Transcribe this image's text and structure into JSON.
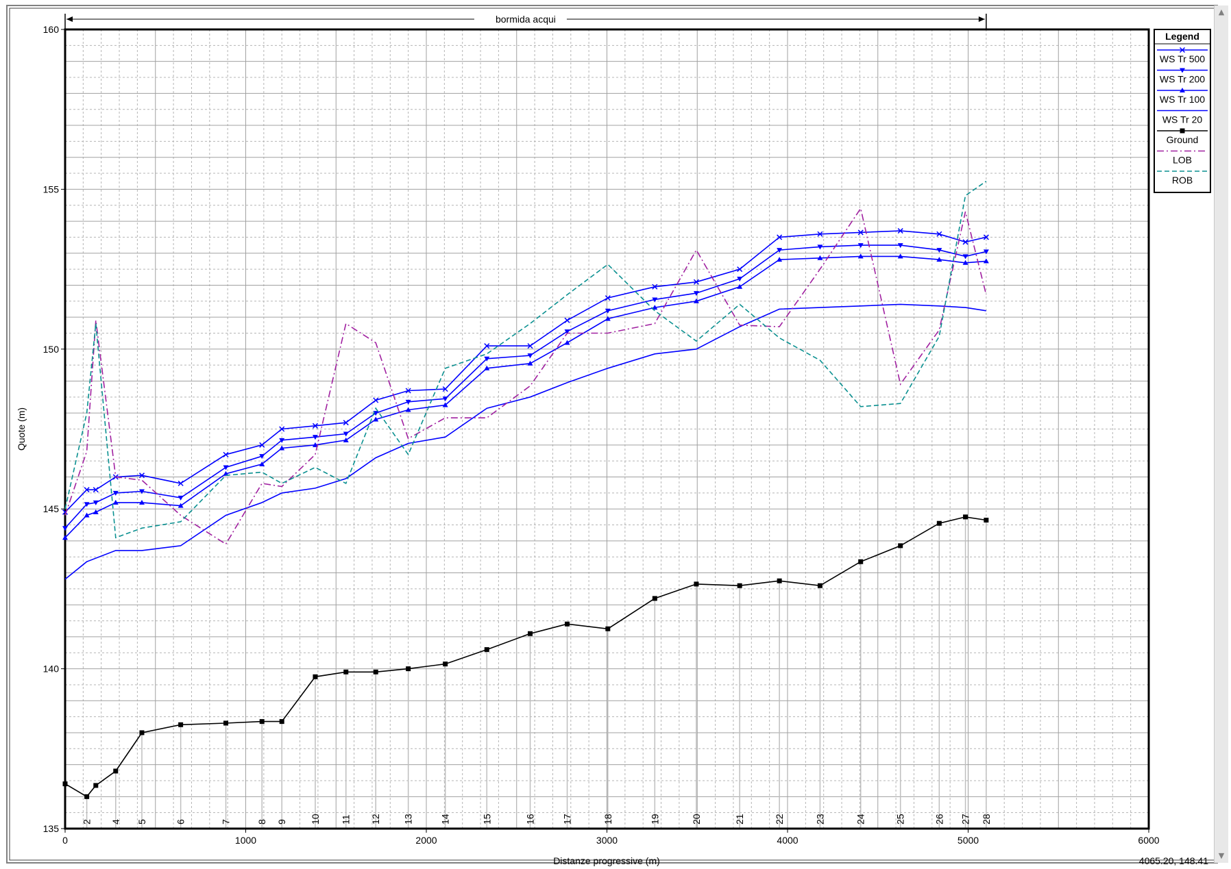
{
  "window": {
    "coordinate_readout": "4065.20, 148.41"
  },
  "colors": {
    "ws": "#0000ff",
    "ground": "#000000",
    "lob": "#a020a0",
    "rob": "#0a9090",
    "grid": "#b4b4b4",
    "station_line": "#bebebe"
  },
  "chart_data": {
    "type": "line",
    "title": "",
    "reach_label": "bormida acqui",
    "xlabel": "Distanze progressive (m)",
    "ylabel": "Quote (m)",
    "xlim": [
      0,
      6000
    ],
    "ylim": [
      135,
      160
    ],
    "x_ticks": [
      0,
      1000,
      2000,
      3000,
      4000,
      5000,
      6000
    ],
    "y_ticks": [
      135,
      140,
      145,
      150,
      155,
      160
    ],
    "grid": true,
    "legend_title": "Legend",
    "legend_position": "right",
    "stations": [
      {
        "label": "2",
        "x": 120
      },
      {
        "label": "4",
        "x": 280
      },
      {
        "label": "5",
        "x": 425
      },
      {
        "label": "6",
        "x": 640
      },
      {
        "label": "7",
        "x": 890
      },
      {
        "label": "8",
        "x": 1090
      },
      {
        "label": "9",
        "x": 1200
      },
      {
        "label": "10",
        "x": 1385
      },
      {
        "label": "11",
        "x": 1555
      },
      {
        "label": "12",
        "x": 1720
      },
      {
        "label": "13",
        "x": 1900
      },
      {
        "label": "14",
        "x": 2105
      },
      {
        "label": "15",
        "x": 2335
      },
      {
        "label": "16",
        "x": 2575
      },
      {
        "label": "17",
        "x": 2780
      },
      {
        "label": "18",
        "x": 3005
      },
      {
        "label": "19",
        "x": 3265
      },
      {
        "label": "20",
        "x": 3495
      },
      {
        "label": "21",
        "x": 3735
      },
      {
        "label": "22",
        "x": 3955
      },
      {
        "label": "23",
        "x": 4180
      },
      {
        "label": "24",
        "x": 4405
      },
      {
        "label": "25",
        "x": 4625
      },
      {
        "label": "26",
        "x": 4840
      },
      {
        "label": "27",
        "x": 4985
      },
      {
        "label": "28",
        "x": 5100
      }
    ],
    "series": [
      {
        "name": "WS  Tr 500",
        "style": "solid",
        "marker": "x",
        "points": [
          [
            0,
            144.9
          ],
          [
            120,
            145.6
          ],
          [
            170,
            145.6
          ],
          [
            280,
            146.0
          ],
          [
            425,
            146.05
          ],
          [
            640,
            145.8
          ],
          [
            890,
            146.7
          ],
          [
            1090,
            147.0
          ],
          [
            1200,
            147.5
          ],
          [
            1385,
            147.6
          ],
          [
            1555,
            147.7
          ],
          [
            1720,
            148.4
          ],
          [
            1900,
            148.7
          ],
          [
            2105,
            148.75
          ],
          [
            2335,
            150.1
          ],
          [
            2575,
            150.1
          ],
          [
            2780,
            150.9
          ],
          [
            3005,
            151.6
          ],
          [
            3265,
            151.95
          ],
          [
            3495,
            152.1
          ],
          [
            3735,
            152.5
          ],
          [
            3955,
            153.5
          ],
          [
            4180,
            153.6
          ],
          [
            4405,
            153.65
          ],
          [
            4625,
            153.7
          ],
          [
            4840,
            153.6
          ],
          [
            4985,
            153.35
          ],
          [
            5100,
            153.5
          ]
        ]
      },
      {
        "name": "WS  Tr 200",
        "style": "solid",
        "marker": "tri-down",
        "points": [
          [
            0,
            144.4
          ],
          [
            120,
            145.15
          ],
          [
            170,
            145.2
          ],
          [
            280,
            145.5
          ],
          [
            425,
            145.55
          ],
          [
            640,
            145.35
          ],
          [
            890,
            146.3
          ],
          [
            1090,
            146.65
          ],
          [
            1200,
            147.15
          ],
          [
            1385,
            147.25
          ],
          [
            1555,
            147.35
          ],
          [
            1720,
            148.0
          ],
          [
            1900,
            148.35
          ],
          [
            2105,
            148.45
          ],
          [
            2335,
            149.7
          ],
          [
            2575,
            149.8
          ],
          [
            2780,
            150.55
          ],
          [
            3005,
            151.2
          ],
          [
            3265,
            151.55
          ],
          [
            3495,
            151.75
          ],
          [
            3735,
            152.2
          ],
          [
            3955,
            153.1
          ],
          [
            4180,
            153.2
          ],
          [
            4405,
            153.25
          ],
          [
            4625,
            153.25
          ],
          [
            4840,
            153.1
          ],
          [
            4985,
            152.9
          ],
          [
            5100,
            153.05
          ]
        ]
      },
      {
        "name": "WS  Tr 100",
        "style": "solid",
        "marker": "tri-up",
        "points": [
          [
            0,
            144.1
          ],
          [
            120,
            144.8
          ],
          [
            170,
            144.9
          ],
          [
            280,
            145.2
          ],
          [
            425,
            145.2
          ],
          [
            640,
            145.1
          ],
          [
            890,
            146.1
          ],
          [
            1090,
            146.4
          ],
          [
            1200,
            146.9
          ],
          [
            1385,
            147.0
          ],
          [
            1555,
            147.15
          ],
          [
            1720,
            147.8
          ],
          [
            1900,
            148.1
          ],
          [
            2105,
            148.25
          ],
          [
            2335,
            149.4
          ],
          [
            2575,
            149.55
          ],
          [
            2780,
            150.2
          ],
          [
            3005,
            150.95
          ],
          [
            3265,
            151.3
          ],
          [
            3495,
            151.5
          ],
          [
            3735,
            151.95
          ],
          [
            3955,
            152.8
          ],
          [
            4180,
            152.85
          ],
          [
            4405,
            152.9
          ],
          [
            4625,
            152.9
          ],
          [
            4840,
            152.8
          ],
          [
            4985,
            152.7
          ],
          [
            5100,
            152.75
          ]
        ]
      },
      {
        "name": "WS  Tr 20",
        "style": "solid",
        "marker": "none",
        "points": [
          [
            0,
            142.8
          ],
          [
            120,
            143.35
          ],
          [
            280,
            143.7
          ],
          [
            425,
            143.7
          ],
          [
            640,
            143.85
          ],
          [
            890,
            144.8
          ],
          [
            1090,
            145.2
          ],
          [
            1200,
            145.5
          ],
          [
            1385,
            145.65
          ],
          [
            1555,
            145.95
          ],
          [
            1720,
            146.6
          ],
          [
            1900,
            147.05
          ],
          [
            2105,
            147.25
          ],
          [
            2335,
            148.15
          ],
          [
            2575,
            148.5
          ],
          [
            2780,
            148.95
          ],
          [
            3005,
            149.4
          ],
          [
            3265,
            149.85
          ],
          [
            3495,
            150.0
          ],
          [
            3735,
            150.7
          ],
          [
            3955,
            151.25
          ],
          [
            4180,
            151.3
          ],
          [
            4405,
            151.35
          ],
          [
            4625,
            151.4
          ],
          [
            4840,
            151.35
          ],
          [
            4985,
            151.3
          ],
          [
            5100,
            151.2
          ]
        ]
      },
      {
        "name": "Ground",
        "style": "solid",
        "marker": "square",
        "points": [
          [
            0,
            136.4
          ],
          [
            120,
            136.0
          ],
          [
            170,
            136.35
          ],
          [
            280,
            136.8
          ],
          [
            425,
            138.0
          ],
          [
            640,
            138.25
          ],
          [
            890,
            138.3
          ],
          [
            1090,
            138.35
          ],
          [
            1200,
            138.35
          ],
          [
            1385,
            139.75
          ],
          [
            1555,
            139.9
          ],
          [
            1720,
            139.9
          ],
          [
            1900,
            140.0
          ],
          [
            2105,
            140.15
          ],
          [
            2335,
            140.6
          ],
          [
            2575,
            141.1
          ],
          [
            2780,
            141.4
          ],
          [
            3005,
            141.25
          ],
          [
            3265,
            142.2
          ],
          [
            3495,
            142.65
          ],
          [
            3735,
            142.6
          ],
          [
            3955,
            142.75
          ],
          [
            4180,
            142.6
          ],
          [
            4405,
            143.35
          ],
          [
            4625,
            143.85
          ],
          [
            4840,
            144.55
          ],
          [
            4985,
            144.75
          ],
          [
            5100,
            144.65
          ]
        ]
      },
      {
        "name": "LOB",
        "style": "dashdot",
        "marker": "none",
        "points": [
          [
            0,
            144.8
          ],
          [
            120,
            146.8
          ],
          [
            170,
            150.9
          ],
          [
            280,
            146.0
          ],
          [
            425,
            145.9
          ],
          [
            640,
            144.8
          ],
          [
            890,
            143.9
          ],
          [
            1090,
            145.8
          ],
          [
            1200,
            145.7
          ],
          [
            1385,
            146.7
          ],
          [
            1555,
            150.8
          ],
          [
            1720,
            150.2
          ],
          [
            1900,
            147.2
          ],
          [
            2105,
            147.85
          ],
          [
            2335,
            147.85
          ],
          [
            2575,
            148.85
          ],
          [
            2780,
            150.5
          ],
          [
            3005,
            150.5
          ],
          [
            3265,
            150.8
          ],
          [
            3495,
            153.1
          ],
          [
            3735,
            150.75
          ],
          [
            3955,
            150.7
          ],
          [
            4180,
            152.5
          ],
          [
            4405,
            154.4
          ],
          [
            4625,
            148.9
          ],
          [
            4840,
            150.6
          ],
          [
            4985,
            154.3
          ],
          [
            5100,
            151.7
          ]
        ]
      },
      {
        "name": "ROB",
        "style": "dashed",
        "marker": "none",
        "points": [
          [
            0,
            145.0
          ],
          [
            120,
            148.0
          ],
          [
            170,
            150.8
          ],
          [
            280,
            144.1
          ],
          [
            425,
            144.4
          ],
          [
            640,
            144.6
          ],
          [
            890,
            146.05
          ],
          [
            1090,
            146.15
          ],
          [
            1200,
            145.8
          ],
          [
            1385,
            146.3
          ],
          [
            1555,
            145.8
          ],
          [
            1720,
            148.15
          ],
          [
            1900,
            146.7
          ],
          [
            2105,
            149.4
          ],
          [
            2335,
            149.85
          ],
          [
            2575,
            150.8
          ],
          [
            2780,
            151.7
          ],
          [
            3005,
            152.65
          ],
          [
            3265,
            151.2
          ],
          [
            3495,
            150.25
          ],
          [
            3735,
            151.4
          ],
          [
            3955,
            150.35
          ],
          [
            4180,
            149.65
          ],
          [
            4405,
            148.2
          ],
          [
            4625,
            148.3
          ],
          [
            4840,
            150.4
          ],
          [
            4985,
            154.8
          ],
          [
            5100,
            155.25
          ]
        ]
      }
    ]
  }
}
